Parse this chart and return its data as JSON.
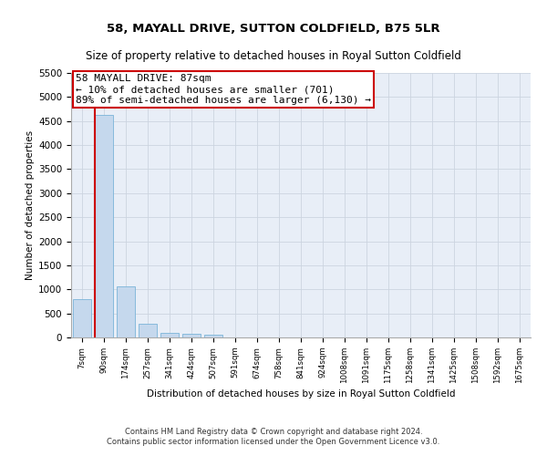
{
  "title": "58, MAYALL DRIVE, SUTTON COLDFIELD, B75 5LR",
  "subtitle": "Size of property relative to detached houses in Royal Sutton Coldfield",
  "xlabel": "Distribution of detached houses by size in Royal Sutton Coldfield",
  "ylabel": "Number of detached properties",
  "footnote1": "Contains HM Land Registry data © Crown copyright and database right 2024.",
  "footnote2": "Contains public sector information licensed under the Open Government Licence v3.0.",
  "categories": [
    "7sqm",
    "90sqm",
    "174sqm",
    "257sqm",
    "341sqm",
    "424sqm",
    "507sqm",
    "591sqm",
    "674sqm",
    "758sqm",
    "841sqm",
    "924sqm",
    "1008sqm",
    "1091sqm",
    "1175sqm",
    "1258sqm",
    "1341sqm",
    "1425sqm",
    "1508sqm",
    "1592sqm",
    "1675sqm"
  ],
  "values": [
    800,
    4620,
    1055,
    280,
    90,
    70,
    55,
    0,
    0,
    0,
    0,
    0,
    0,
    0,
    0,
    0,
    0,
    0,
    0,
    0,
    0
  ],
  "bar_color": "#c5d8ed",
  "bar_edge_color": "#7ab4d8",
  "property_line_color": "#cc0000",
  "property_line_x": 0.575,
  "annotation_text": "58 MAYALL DRIVE: 87sqm\n← 10% of detached houses are smaller (701)\n89% of semi-detached houses are larger (6,130) →",
  "annotation_box_color": "#cc0000",
  "ylim": [
    0,
    5500
  ],
  "yticks": [
    0,
    500,
    1000,
    1500,
    2000,
    2500,
    3000,
    3500,
    4000,
    4500,
    5000,
    5500
  ],
  "bg_color": "#ffffff",
  "ax_bg_color": "#e8eef7",
  "grid_color": "#ccd4e0",
  "title_fontsize": 9.5,
  "subtitle_fontsize": 8.5,
  "ylabel_fontsize": 7.5,
  "xlabel_fontsize": 7.5,
  "tick_fontsize": 7.5,
  "xtick_fontsize": 6.2,
  "footnote_fontsize": 6.0,
  "annotation_fontsize": 8.0
}
